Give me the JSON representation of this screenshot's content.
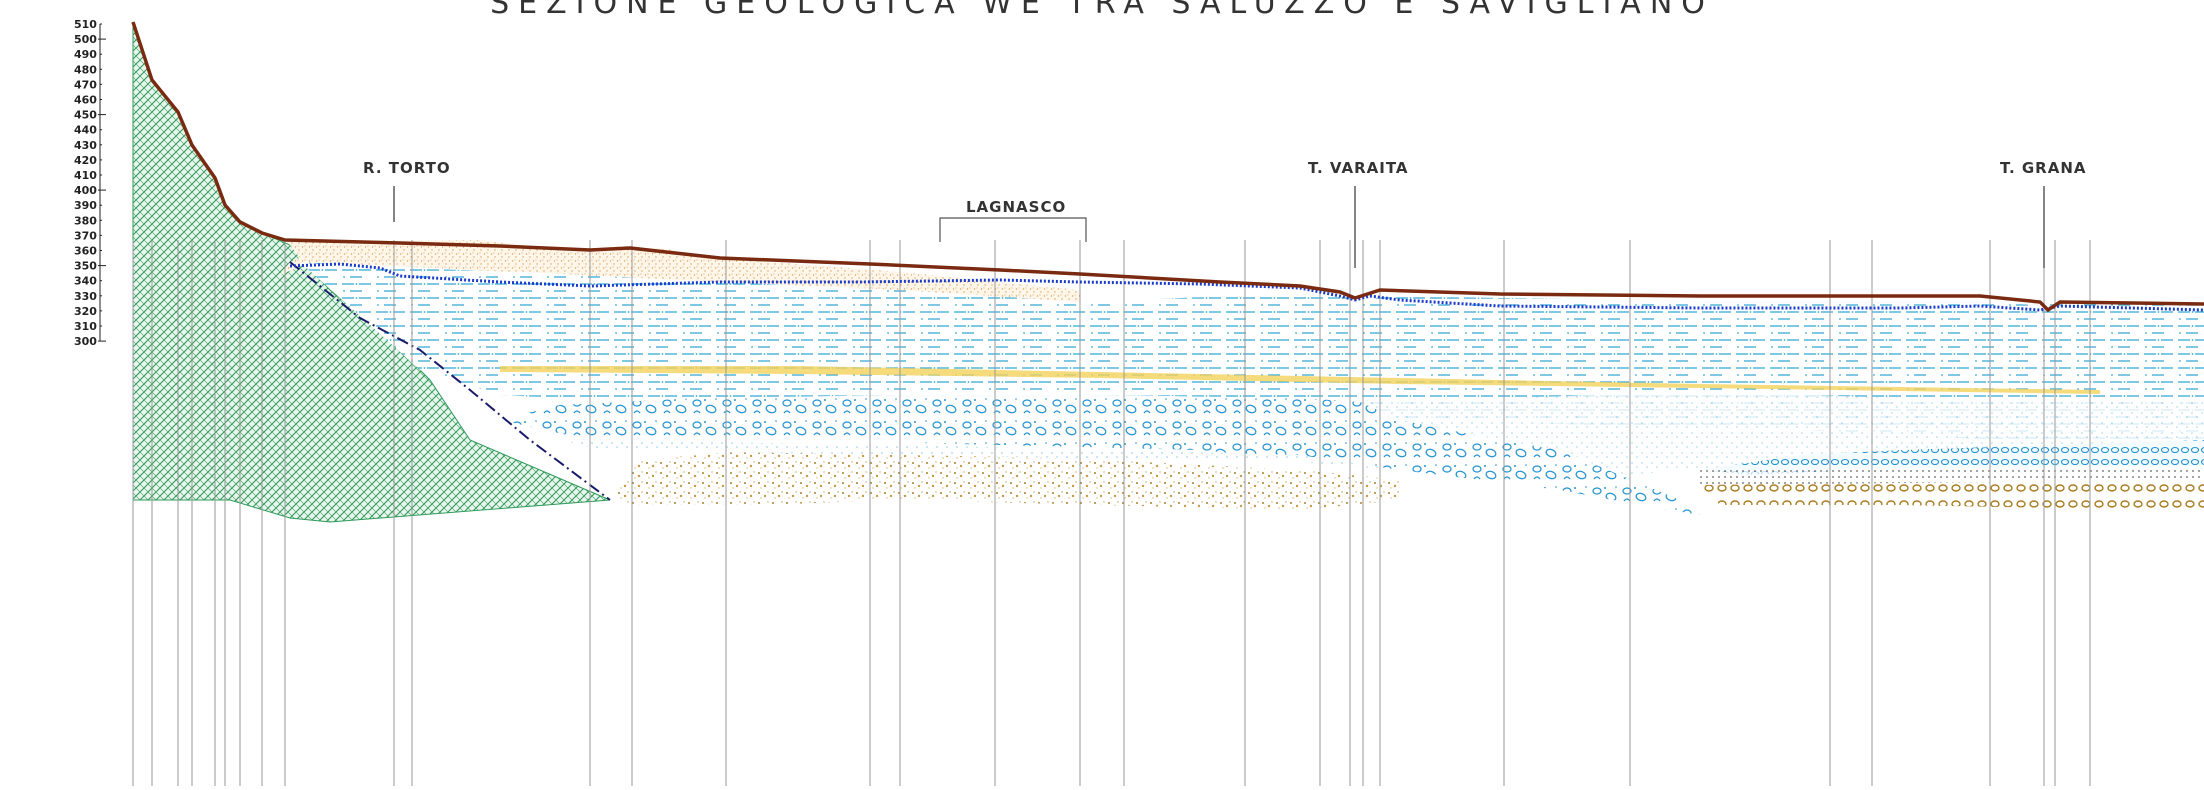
{
  "title": "SEZIONE GEOLOGICA WE  TRA SALUZZO E SAVIGLIANO",
  "elevation_axis": {
    "ticks": [
      510,
      500,
      490,
      480,
      470,
      460,
      450,
      440,
      430,
      420,
      410,
      400,
      390,
      380,
      370,
      360,
      350,
      340,
      330,
      320,
      310,
      300
    ],
    "major_ticks": [
      500,
      450,
      400,
      350,
      300
    ]
  },
  "places": [
    {
      "key": "r_torto",
      "label": "R. TORTO"
    },
    {
      "key": "lagnasco",
      "label": "LAGNASCO"
    },
    {
      "key": "t_varaita",
      "label": "T. VARAITA"
    },
    {
      "key": "t_grana",
      "label": "T. GRANA"
    }
  ],
  "colors": {
    "ground_surface": "#7a2a10",
    "water_table": "#1a3ccc",
    "bedrock": "#2e9a5a",
    "sand_surface": "#d9a05a",
    "silt_lines": "#3aaad6",
    "gravel_blue": "#1c8fd0",
    "gravel_brown": "#a87a1e",
    "yellow_band": "#f2d25a",
    "borehole": "#999999"
  }
}
